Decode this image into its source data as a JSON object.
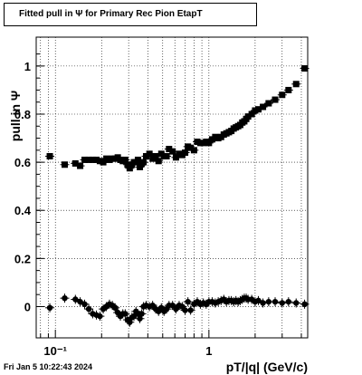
{
  "header": {
    "title": "Fitted pull in  Ψ  for Primary Rec Pion EtapT"
  },
  "footer": {
    "timestamp": "Fri Jan  5 10:22:43 2024"
  },
  "colors": {
    "markers": "#000000",
    "grid": "#000000",
    "background": "#ffffff"
  },
  "chart_data": {
    "type": "scatter",
    "title": "Fitted pull in  Ψ  for Primary Rec Pion EtapT",
    "xlabel": "pT/|q| (GeV/c)",
    "ylabel": "pull in  Ψ",
    "x_scale": "log",
    "xlim": [
      0.075,
      4.4
    ],
    "ylim": [
      -0.13,
      1.12
    ],
    "grid": true,
    "x_major_ticks": [
      {
        "value": 0.1,
        "label": "10⁻¹"
      },
      {
        "value": 1,
        "label": "1"
      }
    ],
    "y_ticks": [
      {
        "value": 0,
        "label": "0"
      },
      {
        "value": 0.2,
        "label": "0.2"
      },
      {
        "value": 0.4,
        "label": "0.4"
      },
      {
        "value": 0.6,
        "label": "0.6"
      },
      {
        "value": 0.8,
        "label": "0.8"
      },
      {
        "value": 1,
        "label": "1"
      }
    ],
    "series": [
      {
        "marker": "square",
        "points": [
          {
            "x": 0.092,
            "y": 0.625
          },
          {
            "x": 0.115,
            "y": 0.59
          },
          {
            "x": 0.135,
            "y": 0.595
          },
          {
            "x": 0.145,
            "y": 0.585
          },
          {
            "x": 0.155,
            "y": 0.61
          },
          {
            "x": 0.165,
            "y": 0.61
          },
          {
            "x": 0.175,
            "y": 0.61
          },
          {
            "x": 0.185,
            "y": 0.61
          },
          {
            "x": 0.195,
            "y": 0.605
          },
          {
            "x": 0.205,
            "y": 0.6
          },
          {
            "x": 0.215,
            "y": 0.615
          },
          {
            "x": 0.225,
            "y": 0.61
          },
          {
            "x": 0.235,
            "y": 0.615
          },
          {
            "x": 0.245,
            "y": 0.615
          },
          {
            "x": 0.255,
            "y": 0.62
          },
          {
            "x": 0.265,
            "y": 0.61
          },
          {
            "x": 0.275,
            "y": 0.605
          },
          {
            "x": 0.285,
            "y": 0.61
          },
          {
            "x": 0.295,
            "y": 0.59
          },
          {
            "x": 0.305,
            "y": 0.575
          },
          {
            "x": 0.315,
            "y": 0.59
          },
          {
            "x": 0.325,
            "y": 0.6
          },
          {
            "x": 0.335,
            "y": 0.6
          },
          {
            "x": 0.345,
            "y": 0.61
          },
          {
            "x": 0.355,
            "y": 0.58
          },
          {
            "x": 0.365,
            "y": 0.595
          },
          {
            "x": 0.375,
            "y": 0.6
          },
          {
            "x": 0.39,
            "y": 0.625
          },
          {
            "x": 0.41,
            "y": 0.635
          },
          {
            "x": 0.43,
            "y": 0.615
          },
          {
            "x": 0.45,
            "y": 0.625
          },
          {
            "x": 0.47,
            "y": 0.605
          },
          {
            "x": 0.49,
            "y": 0.635
          },
          {
            "x": 0.51,
            "y": 0.625
          },
          {
            "x": 0.53,
            "y": 0.625
          },
          {
            "x": 0.55,
            "y": 0.655
          },
          {
            "x": 0.58,
            "y": 0.645
          },
          {
            "x": 0.61,
            "y": 0.62
          },
          {
            "x": 0.64,
            "y": 0.635
          },
          {
            "x": 0.67,
            "y": 0.63
          },
          {
            "x": 0.7,
            "y": 0.64
          },
          {
            "x": 0.73,
            "y": 0.665
          },
          {
            "x": 0.76,
            "y": 0.66
          },
          {
            "x": 0.8,
            "y": 0.65
          },
          {
            "x": 0.84,
            "y": 0.685
          },
          {
            "x": 0.88,
            "y": 0.68
          },
          {
            "x": 0.92,
            "y": 0.68
          },
          {
            "x": 0.96,
            "y": 0.685
          },
          {
            "x": 1.0,
            "y": 0.68
          },
          {
            "x": 1.05,
            "y": 0.695
          },
          {
            "x": 1.1,
            "y": 0.705
          },
          {
            "x": 1.15,
            "y": 0.7
          },
          {
            "x": 1.2,
            "y": 0.705
          },
          {
            "x": 1.25,
            "y": 0.715
          },
          {
            "x": 1.3,
            "y": 0.72
          },
          {
            "x": 1.35,
            "y": 0.725
          },
          {
            "x": 1.4,
            "y": 0.73
          },
          {
            "x": 1.45,
            "y": 0.74
          },
          {
            "x": 1.5,
            "y": 0.745
          },
          {
            "x": 1.55,
            "y": 0.75
          },
          {
            "x": 1.6,
            "y": 0.755
          },
          {
            "x": 1.65,
            "y": 0.765
          },
          {
            "x": 1.7,
            "y": 0.77
          },
          {
            "x": 1.75,
            "y": 0.78
          },
          {
            "x": 1.8,
            "y": 0.79
          },
          {
            "x": 1.9,
            "y": 0.8
          },
          {
            "x": 2.0,
            "y": 0.815
          },
          {
            "x": 2.1,
            "y": 0.82
          },
          {
            "x": 2.25,
            "y": 0.83
          },
          {
            "x": 2.45,
            "y": 0.845
          },
          {
            "x": 2.7,
            "y": 0.86
          },
          {
            "x": 3.0,
            "y": 0.88
          },
          {
            "x": 3.3,
            "y": 0.9
          },
          {
            "x": 3.7,
            "y": 0.925
          },
          {
            "x": 4.2,
            "y": 0.99
          }
        ]
      },
      {
        "marker": "circle",
        "points": [
          {
            "x": 0.092,
            "y": -0.005
          },
          {
            "x": 0.115,
            "y": 0.035
          },
          {
            "x": 0.135,
            "y": 0.03
          },
          {
            "x": 0.145,
            "y": 0.02
          },
          {
            "x": 0.155,
            "y": 0.01
          },
          {
            "x": 0.165,
            "y": -0.01
          },
          {
            "x": 0.175,
            "y": -0.03
          },
          {
            "x": 0.185,
            "y": -0.035
          },
          {
            "x": 0.195,
            "y": -0.04
          },
          {
            "x": 0.205,
            "y": -0.01
          },
          {
            "x": 0.215,
            "y": 0.0
          },
          {
            "x": 0.225,
            "y": 0.01
          },
          {
            "x": 0.235,
            "y": 0.005
          },
          {
            "x": 0.245,
            "y": -0.005
          },
          {
            "x": 0.255,
            "y": -0.025
          },
          {
            "x": 0.265,
            "y": -0.04
          },
          {
            "x": 0.275,
            "y": -0.03
          },
          {
            "x": 0.285,
            "y": -0.03
          },
          {
            "x": 0.295,
            "y": -0.055
          },
          {
            "x": 0.305,
            "y": -0.065
          },
          {
            "x": 0.315,
            "y": -0.045
          },
          {
            "x": 0.325,
            "y": -0.04
          },
          {
            "x": 0.335,
            "y": -0.02
          },
          {
            "x": 0.345,
            "y": -0.03
          },
          {
            "x": 0.355,
            "y": -0.05
          },
          {
            "x": 0.365,
            "y": -0.03
          },
          {
            "x": 0.375,
            "y": 0.0
          },
          {
            "x": 0.39,
            "y": 0.005
          },
          {
            "x": 0.41,
            "y": 0.0
          },
          {
            "x": 0.43,
            "y": 0.005
          },
          {
            "x": 0.45,
            "y": -0.01
          },
          {
            "x": 0.47,
            "y": -0.02
          },
          {
            "x": 0.49,
            "y": -0.005
          },
          {
            "x": 0.51,
            "y": -0.02
          },
          {
            "x": 0.53,
            "y": -0.01
          },
          {
            "x": 0.55,
            "y": 0.005
          },
          {
            "x": 0.58,
            "y": 0.005
          },
          {
            "x": 0.61,
            "y": -0.01
          },
          {
            "x": 0.64,
            "y": 0.005
          },
          {
            "x": 0.67,
            "y": 0.0
          },
          {
            "x": 0.7,
            "y": -0.015
          },
          {
            "x": 0.73,
            "y": 0.02
          },
          {
            "x": 0.76,
            "y": -0.015
          },
          {
            "x": 0.8,
            "y": 0.01
          },
          {
            "x": 0.84,
            "y": 0.02
          },
          {
            "x": 0.88,
            "y": 0.01
          },
          {
            "x": 0.92,
            "y": 0.015
          },
          {
            "x": 0.96,
            "y": 0.01
          },
          {
            "x": 1.0,
            "y": 0.02
          },
          {
            "x": 1.05,
            "y": 0.02
          },
          {
            "x": 1.1,
            "y": 0.015
          },
          {
            "x": 1.15,
            "y": 0.02
          },
          {
            "x": 1.2,
            "y": 0.025
          },
          {
            "x": 1.25,
            "y": 0.03
          },
          {
            "x": 1.3,
            "y": 0.02
          },
          {
            "x": 1.35,
            "y": 0.025
          },
          {
            "x": 1.4,
            "y": 0.025
          },
          {
            "x": 1.45,
            "y": 0.02
          },
          {
            "x": 1.5,
            "y": 0.025
          },
          {
            "x": 1.55,
            "y": 0.02
          },
          {
            "x": 1.6,
            "y": 0.025
          },
          {
            "x": 1.65,
            "y": 0.03
          },
          {
            "x": 1.7,
            "y": 0.035
          },
          {
            "x": 1.75,
            "y": 0.035
          },
          {
            "x": 1.8,
            "y": 0.03
          },
          {
            "x": 1.9,
            "y": 0.03
          },
          {
            "x": 2.0,
            "y": 0.02
          },
          {
            "x": 2.1,
            "y": 0.025
          },
          {
            "x": 2.25,
            "y": 0.015
          },
          {
            "x": 2.45,
            "y": 0.02
          },
          {
            "x": 2.7,
            "y": 0.02
          },
          {
            "x": 3.0,
            "y": 0.015
          },
          {
            "x": 3.3,
            "y": 0.02
          },
          {
            "x": 3.7,
            "y": 0.015
          },
          {
            "x": 4.2,
            "y": 0.01
          }
        ]
      }
    ]
  }
}
